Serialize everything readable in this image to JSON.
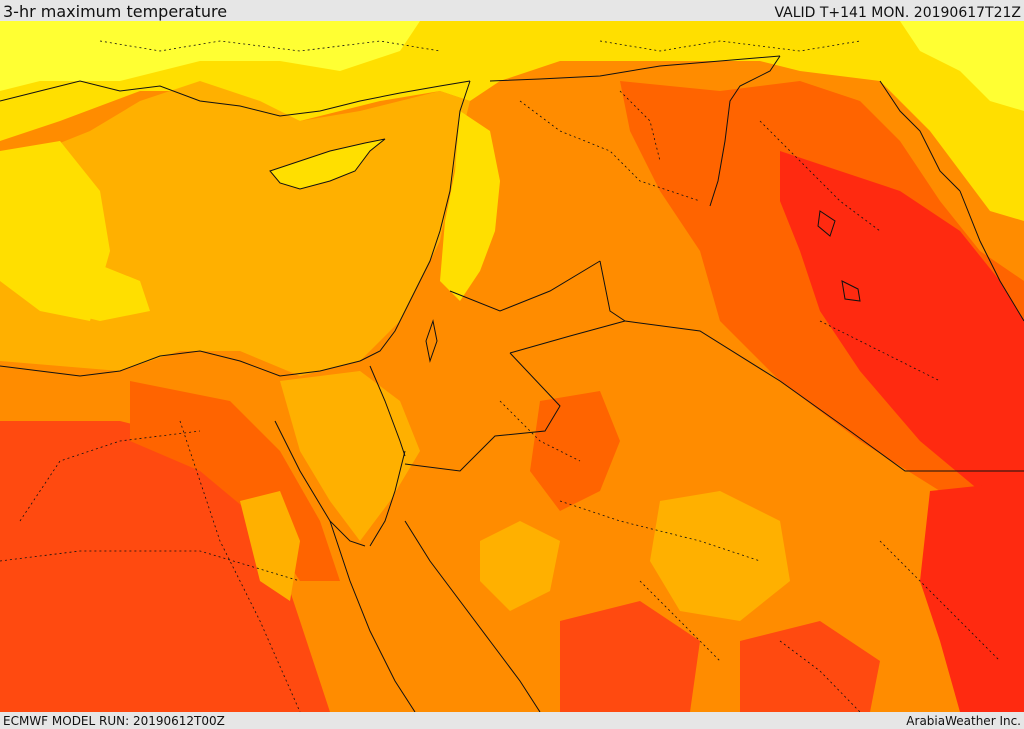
{
  "header": {
    "title": "3-hr maximum temperature",
    "valid_time": "VALID T+141 MON. 20190617T21Z"
  },
  "footer": {
    "model_run": "ECMWF MODEL RUN: 20190612T00Z",
    "credit": "ArabiaWeather Inc."
  },
  "map": {
    "variable": "3-hr maximum temperature",
    "colors": {
      "light_yellow": "#ffff33",
      "yellow": "#ffdf00",
      "amber": "#ffb000",
      "orange": "#ff8c00",
      "dark_orange": "#ff6400",
      "red_orange": "#ff4a10",
      "red": "#ff2a10",
      "border": "#111111"
    }
  }
}
